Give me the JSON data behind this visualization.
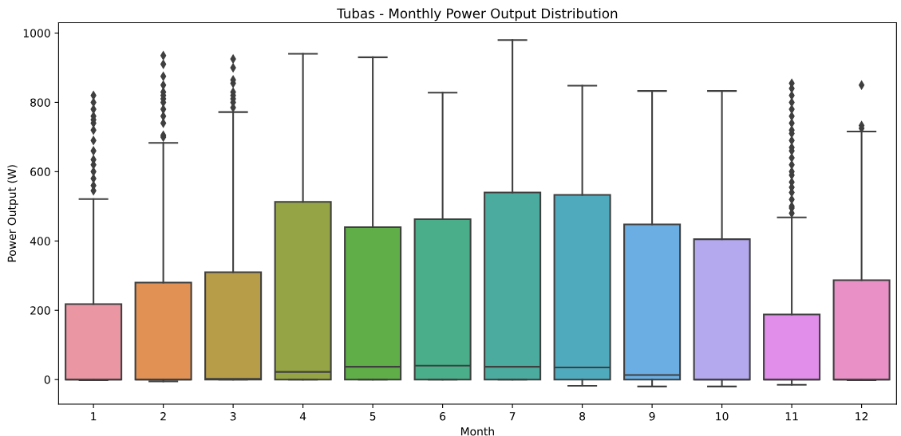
{
  "chart_data": {
    "type": "box",
    "title": "Tubas - Monthly Power Output Distribution",
    "xlabel": "Month",
    "ylabel": "Power Output (W)",
    "categories": [
      "1",
      "2",
      "3",
      "4",
      "5",
      "6",
      "7",
      "8",
      "9",
      "10",
      "11",
      "12"
    ],
    "colors": [
      "#ea96a3",
      "#e19153",
      "#b89d48",
      "#95a444",
      "#5fae47",
      "#4aae8b",
      "#4cab9f",
      "#50aabd",
      "#6aaee3",
      "#b4a8ef",
      "#e08eea",
      "#e991c6"
    ],
    "ylim": [
      -71,
      1030
    ],
    "yticks": [
      0,
      200,
      400,
      600,
      800,
      1000
    ],
    "grid": false,
    "marker": "diamond",
    "boxes": [
      {
        "low": -2,
        "q1": 0,
        "median": 0,
        "q3": 218,
        "high": 521,
        "outliers": [
          545,
          560,
          580,
          600,
          620,
          635,
          660,
          690,
          720,
          740,
          750,
          760,
          780,
          800,
          820
        ]
      },
      {
        "low": -5,
        "q1": 0,
        "median": 0,
        "q3": 280,
        "high": 683,
        "outliers": [
          700,
          705,
          740,
          760,
          780,
          800,
          810,
          820,
          830,
          850,
          875,
          910,
          935
        ]
      },
      {
        "low": 0,
        "q1": 0,
        "median": 2,
        "q3": 310,
        "high": 772,
        "outliers": [
          785,
          800,
          810,
          820,
          830,
          855,
          865,
          900,
          925
        ]
      },
      {
        "low": 0,
        "q1": 0,
        "median": 22,
        "q3": 513,
        "high": 940
      },
      {
        "low": 0,
        "q1": 0,
        "median": 37,
        "q3": 440,
        "high": 930
      },
      {
        "low": 0,
        "q1": 0,
        "median": 40,
        "q3": 463,
        "high": 828
      },
      {
        "low": 0,
        "q1": 0,
        "median": 37,
        "q3": 540,
        "high": 980
      },
      {
        "low": -18,
        "q1": 0,
        "median": 35,
        "q3": 533,
        "high": 848
      },
      {
        "low": -20,
        "q1": 0,
        "median": 13,
        "q3": 448,
        "high": 833
      },
      {
        "low": -20,
        "q1": 0,
        "median": 0,
        "q3": 405,
        "high": 833
      },
      {
        "low": -15,
        "q1": 0,
        "median": 0,
        "q3": 188,
        "high": 468,
        "outliers": [
          480,
          495,
          500,
          520,
          540,
          555,
          570,
          590,
          600,
          620,
          640,
          660,
          670,
          690,
          710,
          720,
          740,
          760,
          780,
          800,
          820,
          840,
          855
        ]
      },
      {
        "low": -2,
        "q1": 0,
        "median": 0,
        "q3": 287,
        "high": 716,
        "outliers": [
          725,
          733,
          850
        ]
      }
    ]
  }
}
